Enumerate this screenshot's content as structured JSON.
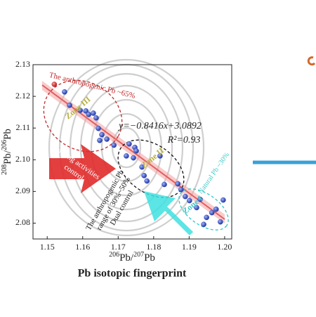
{
  "chart_data": {
    "type": "scatter",
    "title": "Pb isotopic fingerprint",
    "xlabel": [
      "206",
      "Pb/",
      "207",
      "Pb"
    ],
    "ylabel": [
      "208",
      "Pb/",
      "206",
      "Pb"
    ],
    "xlim": [
      1.146,
      1.202
    ],
    "ylim": [
      2.075,
      2.13
    ],
    "xticks": [
      1.15,
      1.16,
      1.17,
      1.18,
      1.19,
      {
        "value": 1.2,
        "label": "1.20"
      }
    ],
    "yticks": [
      2.08,
      2.09,
      {
        "value": 2.1,
        "label": "2.10"
      },
      2.11,
      2.12,
      2.13
    ],
    "series": [
      {
        "color": "#d93a3a",
        "x": [
          1.152
        ],
        "values": [
          2.1238
        ]
      },
      {
        "color": "#3a55c8",
        "x": [
          1.1549,
          1.1563,
          1.1593,
          1.1609,
          1.1617,
          1.163,
          1.1638,
          1.1644,
          1.1654,
          1.1648,
          1.1668,
          1.1688,
          1.1731,
          1.1747,
          1.1751,
          1.1723,
          1.1743,
          1.1767,
          1.1773,
          1.1781,
          1.183,
          1.1877,
          1.1889,
          1.1901,
          1.1921,
          1.1931,
          1.1949,
          1.1964,
          1.1976,
          1.1996,
          1.1988,
          1.1941,
          1.1818,
          1.1868
        ],
        "values": [
          2.1214,
          2.1172,
          2.1156,
          2.1154,
          2.1143,
          2.1147,
          2.1132,
          2.1099,
          2.1079,
          2.1061,
          2.1065,
          2.1046,
          2.105,
          2.1039,
          2.1028,
          2.1012,
          2.1006,
          2.0977,
          2.095,
          2.0933,
          2.0922,
          2.0906,
          2.0884,
          2.0871,
          2.0849,
          2.0875,
          2.0818,
          2.0833,
          2.0844,
          2.0873,
          2.0804,
          2.0796,
          2.1012,
          2.0924
        ]
      }
    ],
    "annotations": {
      "zone3_label": "The anthropogenic Pb ~65%",
      "zone3": "Zone III",
      "zone2": "Zone II",
      "zone1": "Zone I",
      "zone1_label": "Natural Pb ~30%",
      "mining": [
        "Mining activities",
        "control"
      ],
      "equation": "y=−0.8416x+3.0892",
      "r2": "R²=0.93",
      "dual": [
        "The anthropogenic Pb",
        "range of 30%~50%",
        "Dual control"
      ]
    }
  }
}
